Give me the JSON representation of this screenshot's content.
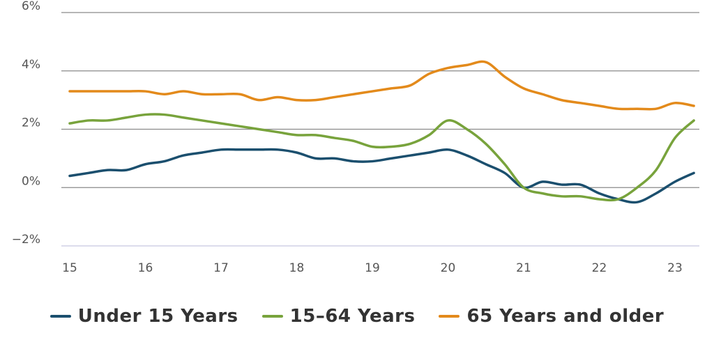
{
  "chart_data": {
    "type": "line",
    "title": "",
    "xlabel": "",
    "ylabel": "",
    "xlim": [
      15,
      23.3
    ],
    "ylim": [
      -2,
      6
    ],
    "x_ticks": [
      15,
      16,
      17,
      18,
      19,
      20,
      21,
      22,
      23
    ],
    "x_tick_labels": [
      "15",
      "16",
      "17",
      "18",
      "19",
      "20",
      "21",
      "22",
      "23"
    ],
    "y_ticks": [
      -2,
      0,
      2,
      4,
      6
    ],
    "y_tick_labels": [
      "−2%",
      "0%",
      "2%",
      "4%",
      "6%"
    ],
    "grid": "horizontal",
    "legend_position": "bottom",
    "series": [
      {
        "name": "Under 15 Years",
        "color": "#1b4f6e",
        "x": [
          15.0,
          15.25,
          15.5,
          15.75,
          16.0,
          16.25,
          16.5,
          16.75,
          17.0,
          17.25,
          17.5,
          17.75,
          18.0,
          18.25,
          18.5,
          18.75,
          19.0,
          19.25,
          19.5,
          19.75,
          20.0,
          20.25,
          20.5,
          20.75,
          21.0,
          21.25,
          21.5,
          21.75,
          22.0,
          22.25,
          22.5,
          22.75,
          23.0,
          23.25
        ],
        "y": [
          0.4,
          0.5,
          0.6,
          0.6,
          0.8,
          0.9,
          1.1,
          1.2,
          1.3,
          1.3,
          1.3,
          1.3,
          1.2,
          1.0,
          1.0,
          0.9,
          0.9,
          1.0,
          1.1,
          1.2,
          1.3,
          1.1,
          0.8,
          0.5,
          0.0,
          0.2,
          0.1,
          0.1,
          -0.2,
          -0.4,
          -0.5,
          -0.2,
          0.2,
          0.5
        ]
      },
      {
        "name": "15–64 Years",
        "color": "#78a33c",
        "x": [
          15.0,
          15.25,
          15.5,
          15.75,
          16.0,
          16.25,
          16.5,
          16.75,
          17.0,
          17.25,
          17.5,
          17.75,
          18.0,
          18.25,
          18.5,
          18.75,
          19.0,
          19.25,
          19.5,
          19.75,
          20.0,
          20.25,
          20.5,
          20.75,
          21.0,
          21.25,
          21.5,
          21.75,
          22.0,
          22.25,
          22.5,
          22.75,
          23.0,
          23.25
        ],
        "y": [
          2.2,
          2.3,
          2.3,
          2.4,
          2.5,
          2.5,
          2.4,
          2.3,
          2.2,
          2.1,
          2.0,
          1.9,
          1.8,
          1.8,
          1.7,
          1.6,
          1.4,
          1.4,
          1.5,
          1.8,
          2.3,
          2.0,
          1.5,
          0.8,
          0.0,
          -0.2,
          -0.3,
          -0.3,
          -0.4,
          -0.4,
          0.0,
          0.6,
          1.7,
          2.3
        ]
      },
      {
        "name": "65 Years and older",
        "color": "#e38a1b",
        "x": [
          15.0,
          15.25,
          15.5,
          15.75,
          16.0,
          16.25,
          16.5,
          16.75,
          17.0,
          17.25,
          17.5,
          17.75,
          18.0,
          18.25,
          18.5,
          18.75,
          19.0,
          19.25,
          19.5,
          19.75,
          20.0,
          20.25,
          20.5,
          20.75,
          21.0,
          21.25,
          21.5,
          21.75,
          22.0,
          22.25,
          22.5,
          22.75,
          23.0,
          23.25
        ],
        "y": [
          3.3,
          3.3,
          3.3,
          3.3,
          3.3,
          3.2,
          3.3,
          3.2,
          3.2,
          3.2,
          3.0,
          3.1,
          3.0,
          3.0,
          3.1,
          3.2,
          3.3,
          3.4,
          3.5,
          3.9,
          4.1,
          4.2,
          4.3,
          3.8,
          3.4,
          3.2,
          3.0,
          2.9,
          2.8,
          2.7,
          2.7,
          2.7,
          2.9,
          2.8
        ]
      }
    ]
  }
}
